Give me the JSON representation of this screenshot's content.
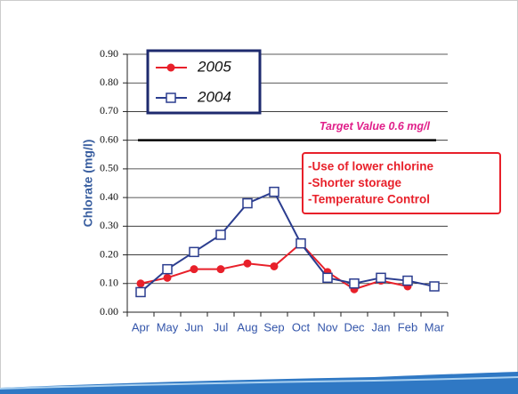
{
  "chart_data": {
    "type": "line",
    "categories": [
      "Apr",
      "May",
      "Jun",
      "Jul",
      "Aug",
      "Sep",
      "Oct",
      "Nov",
      "Dec",
      "Jan",
      "Feb",
      "Mar"
    ],
    "series": [
      {
        "name": "2005",
        "color": "#e8202a",
        "marker": "circle",
        "values": [
          0.1,
          0.12,
          0.15,
          0.15,
          0.17,
          0.16,
          0.24,
          0.14,
          0.08,
          0.11,
          0.09,
          null
        ]
      },
      {
        "name": "2004",
        "color": "#2b3d8f",
        "marker": "square",
        "values": [
          0.07,
          0.15,
          0.21,
          0.27,
          0.38,
          0.42,
          0.24,
          0.12,
          0.1,
          0.12,
          0.11,
          0.09
        ]
      }
    ],
    "ylabel": "Chlorate (mg/l)",
    "ylim": [
      0,
      0.9
    ],
    "yticks": [
      {
        "value": 0,
        "label": "0.00"
      },
      {
        "value": 0.1,
        "label": "0.10"
      },
      {
        "value": 0.2,
        "label": "0.20"
      },
      {
        "value": 0.3,
        "label": "0.30"
      },
      {
        "value": 0.4,
        "label": "0.40"
      },
      {
        "value": 0.5,
        "label": "0.50"
      },
      {
        "value": 0.6,
        "label": "0.60"
      },
      {
        "value": 0.7,
        "label": "0.70"
      },
      {
        "value": 0.8,
        "label": "0.80"
      },
      {
        "value": 0.9,
        "label": "0.90"
      }
    ],
    "grid": true,
    "target": {
      "value": 0.6,
      "label": "Target Value 0.6 mg/l"
    },
    "annotation": [
      "-Use of lower chlorine",
      "-Shorter storage",
      "-Temperature Control"
    ]
  }
}
